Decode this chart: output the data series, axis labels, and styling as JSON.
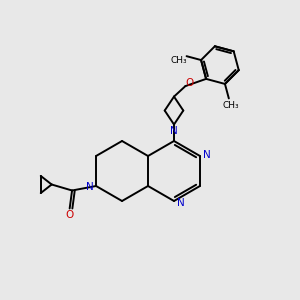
{
  "bg_color": "#e8e8e8",
  "bond_color": "#000000",
  "nitrogen_color": "#0000cc",
  "oxygen_color": "#cc0000",
  "line_width": 1.4,
  "figsize": [
    3.0,
    3.0
  ],
  "dpi": 100,
  "xlim": [
    0,
    10
  ],
  "ylim": [
    0,
    10
  ]
}
